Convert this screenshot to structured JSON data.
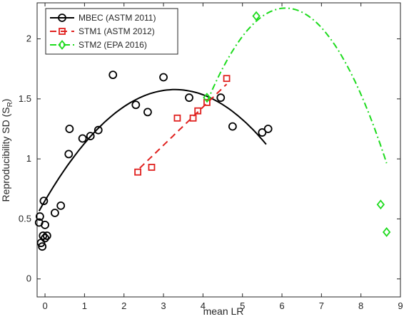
{
  "chart_data": {
    "type": "scatter",
    "xlabel": "mean LR",
    "ylabel": "Reproducibility SD (S",
    "ylabel_sub": "R",
    "ylabel_close": ")",
    "xlim": [
      -0.2,
      9
    ],
    "ylim": [
      -0.15,
      2.3
    ],
    "xticks": [
      0,
      1,
      2,
      3,
      4,
      5,
      6,
      7,
      8,
      9
    ],
    "yticks": [
      0,
      0.5,
      1,
      1.5,
      2
    ],
    "xtick_labels": [
      "0",
      "1",
      "2",
      "3",
      "4",
      "5",
      "6",
      "7",
      "8",
      "9"
    ],
    "ytick_labels": [
      "0",
      "0.5",
      "1",
      "1.5",
      "2"
    ],
    "grid": false,
    "legend_position": "top-left",
    "series": [
      {
        "name": "MBEC (ASTM 2011)",
        "color": "#000000",
        "marker": "circle",
        "line_style": "solid",
        "points": [
          [
            -0.13,
            0.52
          ],
          [
            -0.15,
            0.47
          ],
          [
            -0.1,
            0.3
          ],
          [
            -0.07,
            0.27
          ],
          [
            -0.05,
            0.36
          ],
          [
            0.0,
            0.34
          ],
          [
            -0.03,
            0.65
          ],
          [
            0.0,
            0.45
          ],
          [
            0.05,
            0.36
          ],
          [
            0.25,
            0.55
          ],
          [
            0.4,
            0.61
          ],
          [
            0.6,
            1.04
          ],
          [
            0.62,
            1.25
          ],
          [
            0.95,
            1.17
          ],
          [
            1.15,
            1.19
          ],
          [
            1.35,
            1.24
          ],
          [
            1.72,
            1.7
          ],
          [
            2.3,
            1.45
          ],
          [
            2.6,
            1.39
          ],
          [
            3.0,
            1.68
          ],
          [
            3.65,
            1.51
          ],
          [
            4.45,
            1.51
          ],
          [
            4.75,
            1.27
          ],
          [
            5.5,
            1.22
          ],
          [
            5.65,
            1.25
          ]
        ],
        "fit": {
          "type": "quadratic",
          "x_from": -0.15,
          "x_to": 5.6,
          "a": -0.0855,
          "b": 0.5626,
          "c": 0.652
        }
      },
      {
        "name": "STM1 (ASTM 2012)",
        "color": "#e0211f",
        "marker": "square",
        "line_style": "dashed",
        "points": [
          [
            2.35,
            0.89
          ],
          [
            2.7,
            0.93
          ],
          [
            3.35,
            1.34
          ],
          [
            3.75,
            1.34
          ],
          [
            3.87,
            1.4
          ],
          [
            4.1,
            1.47
          ],
          [
            4.6,
            1.67
          ]
        ],
        "fit": {
          "type": "linear",
          "x_from": 2.4,
          "x_to": 4.6,
          "a": 0.318,
          "b": 0.16
        }
      },
      {
        "name": "STM2 (EPA 2016)",
        "color": "#1edb1e",
        "marker": "diamond",
        "line_style": "dash-dot",
        "points": [
          [
            4.1,
            1.51
          ],
          [
            5.35,
            2.19
          ],
          [
            8.5,
            0.62
          ],
          [
            8.65,
            0.39
          ]
        ],
        "fit": {
          "type": "quadratic",
          "x_from": 4.1,
          "x_to": 8.65,
          "a": -0.1975,
          "b": 2.4064,
          "c": -5.074
        }
      }
    ]
  }
}
